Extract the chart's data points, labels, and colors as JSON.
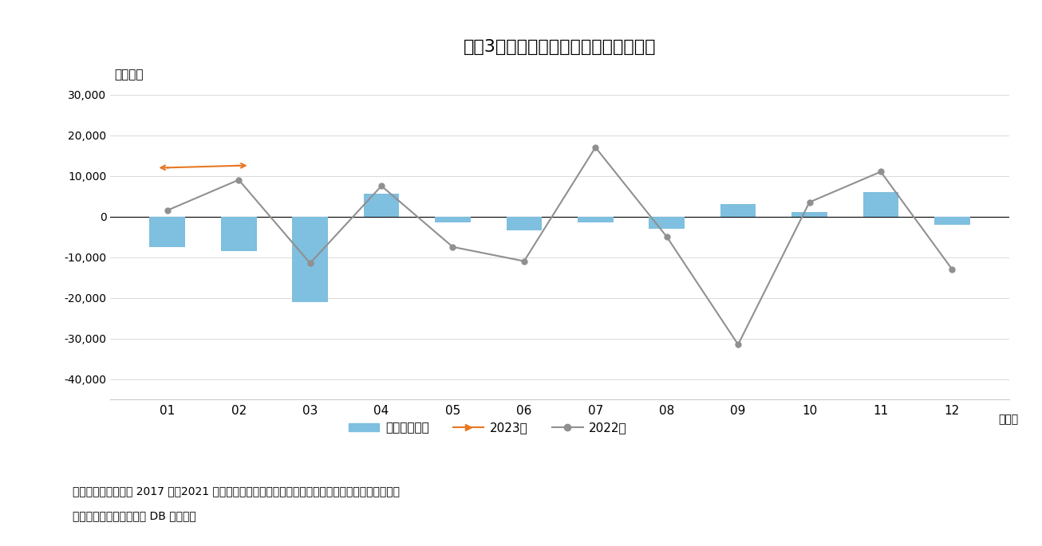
{
  "title": "図袁3　海外投賄家の月別平均売買動向",
  "ylabel": "（億円）",
  "xlabel_end": "（月）",
  "months": [
    "01",
    "02",
    "03",
    "04",
    "05",
    "06",
    "07",
    "08",
    "09",
    "10",
    "11",
    "12"
  ],
  "bar_values": [
    -7500,
    -8500,
    -21000,
    5500,
    -1500,
    -3500,
    -1500,
    -3000,
    3000,
    1000,
    6000,
    -2000
  ],
  "line_2023": [
    12000,
    12500,
    null,
    null,
    null,
    null,
    null,
    null,
    null,
    null,
    null,
    null
  ],
  "line_2022": [
    1500,
    9000,
    -11500,
    7500,
    -7500,
    -11000,
    17000,
    -5000,
    -31500,
    3500,
    11000,
    -13000
  ],
  "bar_color": "#7FBFDF",
  "line_2023_color": "#E87722",
  "line_2022_color": "#909090",
  "ylim": [
    -45000,
    35000
  ],
  "yticks": [
    -40000,
    -30000,
    -20000,
    -10000,
    0,
    10000,
    20000,
    30000
  ],
  "legend_bar": "平均売買動向",
  "legend_2023": "2023年",
  "legend_2022": "2022年",
  "note1": "（注）海外投賄家の 2017 年～2021 年の月次の売買動向について、現物と先物の合計を単純平均。",
  "note2": "（資料）ニッセイ基础研 DB から作成",
  "bg_color": "#FFFFFF"
}
